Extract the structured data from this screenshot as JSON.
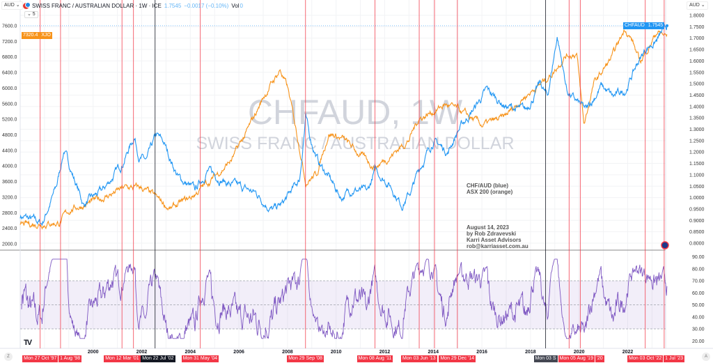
{
  "header": {
    "title": "SWISS FRANC / AUSTRALIAN DOLLAR · 1W · ICE",
    "price": "1.7545",
    "change": "−0.0017 (−0.10%)",
    "vol_label": "Vol",
    "vol_value": "0",
    "collapse": "⌄ 5",
    "icon": "currency-pair-icon"
  },
  "currency_left": "AUD ⌄",
  "currency_right": "AUD ⌄",
  "price_tags": {
    "xjo_value": "7320.4",
    "xjo_name": "XJO",
    "chf_name": "CHFAUD",
    "chf_value": "1.7545"
  },
  "watermark": {
    "line1": "CHFAUD, 1W",
    "line2": "SWISS FRANC / AUSTRALIAN DOLLAR"
  },
  "annotations": {
    "legend1": "CHF/AUD (blue)",
    "legend2": "ASX 200 (orange)",
    "date": "August 14, 2023",
    "author": "by Rob Zdravevski",
    "company": "Karri Asset Advisors",
    "email": "rob@karriasset.com.au"
  },
  "buttons": {
    "z": "Z",
    "a": "A",
    "logo": "TV"
  },
  "colors": {
    "blue": "#2196f3",
    "orange": "#f7931a",
    "rsi": "#7e57c2",
    "marker": "#f23645",
    "marker_dark": "#131722"
  },
  "chart_data": {
    "type": "line",
    "title": "CHFAUD, 1W",
    "x_range": [
      1997.0,
      2023.62
    ],
    "left_axis": {
      "label": "ASX 200",
      "ticks": [
        "7600.0",
        "7200.0",
        "6800.0",
        "6400.0",
        "6000.0",
        "5600.0",
        "5200.0",
        "4800.0",
        "4400.0",
        "4000.0",
        "3600.0",
        "3200.0",
        "2800.0",
        "2400.0",
        "2000.0"
      ],
      "range": [
        2000,
        7600
      ]
    },
    "right_axis": {
      "label": "CHF/AUD",
      "ticks": [
        "1.8000",
        "1.7500",
        "1.7000",
        "1.6500",
        "1.6000",
        "1.5500",
        "1.5000",
        "1.4500",
        "1.4000",
        "1.3500",
        "1.3000",
        "1.2500",
        "1.2000",
        "1.1500",
        "1.1000",
        "1.0500",
        "1.0000",
        "0.9500",
        "0.9000",
        "0.8500",
        "0.8000"
      ],
      "range": [
        0.8,
        1.8
      ]
    },
    "rsi_axis": {
      "ticks": [
        "90.00",
        "80.00",
        "70.00",
        "60.00",
        "50.00",
        "40.00",
        "30.00",
        "20.00"
      ],
      "band": [
        30,
        70
      ]
    },
    "x_ticks": [
      "2000",
      "2002",
      "2004",
      "2006",
      "2008",
      "2010",
      "2012",
      "2014",
      "2016",
      "2018",
      "2020",
      "2022"
    ],
    "series": [
      {
        "name": "CHF/AUD",
        "axis": "right",
        "anchors": [
          [
            1997,
            0.92
          ],
          [
            1997.9,
            0.885
          ],
          [
            1998.5,
            1.05
          ],
          [
            1998.8,
            1.21
          ],
          [
            1999.1,
            1.12
          ],
          [
            1999.6,
            0.97
          ],
          [
            2000.4,
            1.03
          ],
          [
            2001.2,
            1.15
          ],
          [
            2001.7,
            1.27
          ],
          [
            2001.9,
            1.18
          ],
          [
            2002.2,
            1.16
          ],
          [
            2002.6,
            1.27
          ],
          [
            2002.9,
            1.24
          ],
          [
            2003.5,
            1.09
          ],
          [
            2004.2,
            1.03
          ],
          [
            2004.7,
            1.12
          ],
          [
            2005.6,
            1.06
          ],
          [
            2006.7,
            1.02
          ],
          [
            2007.4,
            0.945
          ],
          [
            2007.8,
            0.97
          ],
          [
            2008.5,
            1.08
          ],
          [
            2008.75,
            1.355
          ],
          [
            2008.9,
            1.27
          ],
          [
            2009.3,
            1.15
          ],
          [
            2009.7,
            1.09
          ],
          [
            2010.2,
            1.0
          ],
          [
            2010.7,
            1.04
          ],
          [
            2011.3,
            1.02
          ],
          [
            2011.6,
            1.12
          ],
          [
            2012.2,
            1.06
          ],
          [
            2012.7,
            0.97
          ],
          [
            2013.1,
            1.03
          ],
          [
            2013.4,
            1.12
          ],
          [
            2014.0,
            1.25
          ],
          [
            2014.6,
            1.2
          ],
          [
            2014.99,
            1.29
          ],
          [
            2015.6,
            1.38
          ],
          [
            2016.2,
            1.47
          ],
          [
            2017.0,
            1.4
          ],
          [
            2017.8,
            1.38
          ],
          [
            2018.4,
            1.5
          ],
          [
            2018.7,
            1.44
          ],
          [
            2019.1,
            1.71
          ],
          [
            2019.5,
            1.47
          ],
          [
            2019.8,
            1.43
          ],
          [
            2020.3,
            1.38
          ],
          [
            2020.9,
            1.49
          ],
          [
            2021.4,
            1.44
          ],
          [
            2021.9,
            1.47
          ],
          [
            2022.4,
            1.59
          ],
          [
            2022.8,
            1.66
          ],
          [
            2023.2,
            1.69
          ],
          [
            2023.62,
            1.7545
          ]
        ]
      },
      {
        "name": "ASX 200",
        "axis": "left",
        "anchors": [
          [
            1997,
            2450
          ],
          [
            1997.9,
            2540
          ],
          [
            1998.6,
            2540
          ],
          [
            1999.1,
            2900
          ],
          [
            2000.0,
            3070
          ],
          [
            2001.3,
            3430
          ],
          [
            2002.0,
            3430
          ],
          [
            2002.6,
            3170
          ],
          [
            2003.2,
            2890
          ],
          [
            2004.0,
            3170
          ],
          [
            2004.8,
            3610
          ],
          [
            2005.7,
            4150
          ],
          [
            2006.4,
            4950
          ],
          [
            2007.0,
            5760
          ],
          [
            2007.7,
            6470
          ],
          [
            2008.0,
            6000
          ],
          [
            2008.5,
            4500
          ],
          [
            2008.75,
            3610
          ],
          [
            2009.2,
            3790
          ],
          [
            2009.7,
            4860
          ],
          [
            2010.3,
            4680
          ],
          [
            2010.9,
            4330
          ],
          [
            2011.6,
            3970
          ],
          [
            2012.2,
            4240
          ],
          [
            2013.0,
            4680
          ],
          [
            2013.4,
            5220
          ],
          [
            2014.0,
            5400
          ],
          [
            2014.5,
            5580
          ],
          [
            2015.1,
            5400
          ],
          [
            2016.0,
            5040
          ],
          [
            2016.9,
            5220
          ],
          [
            2017.7,
            5760
          ],
          [
            2018.6,
            6200
          ],
          [
            2019.0,
            6470
          ],
          [
            2019.4,
            6830
          ],
          [
            2019.9,
            6900
          ],
          [
            2020.2,
            5040
          ],
          [
            2020.6,
            6100
          ],
          [
            2021.4,
            6830
          ],
          [
            2021.9,
            7550
          ],
          [
            2022.2,
            7200
          ],
          [
            2022.5,
            6650
          ],
          [
            2022.9,
            7100
          ],
          [
            2023.2,
            7450
          ],
          [
            2023.62,
            7320.4
          ]
        ]
      }
    ],
    "markers": [
      {
        "date": 1997.82,
        "label": "Mon 27 Oct '97",
        "dark": false
      },
      {
        "date": 1998.66,
        "label": "1 Aug '98",
        "dark": false,
        "trunc": true
      },
      {
        "date": 2001.19,
        "label": "Mon 12 Mar '01",
        "dark": false
      },
      {
        "date": 2001.66,
        "label": "",
        "dark": false
      },
      {
        "date": 2002.55,
        "label": "Mon 22 Jul '02",
        "dark": true
      },
      {
        "date": 2004.41,
        "label": "Mon 31 May '04",
        "dark": false
      },
      {
        "date": 2008.74,
        "label": "Mon 29 Sep '08",
        "dark": false
      },
      {
        "date": 2011.6,
        "label": "Mon 08 Aug '11",
        "dark": false
      },
      {
        "date": 2013.42,
        "label": "Mon 03 Jun '13",
        "dark": false
      },
      {
        "date": 2014.05,
        "label": "",
        "dark": false
      },
      {
        "date": 2014.99,
        "label": "Mon 29 Dec '14",
        "dark": false
      },
      {
        "date": 2018.62,
        "label": "Mon 03 S",
        "dark": true
      },
      {
        "date": 2019.59,
        "label": "Mon 05 Aug '19",
        "dark": false
      },
      {
        "date": 2020.05,
        "label": "'20",
        "dark": false,
        "trunc": true
      },
      {
        "date": 2022.72,
        "label": "Mon 03 Oct '22",
        "dark": false
      },
      {
        "date": 2023.5,
        "label": "1 Jul '23",
        "dark": false,
        "trunc": true
      }
    ]
  }
}
